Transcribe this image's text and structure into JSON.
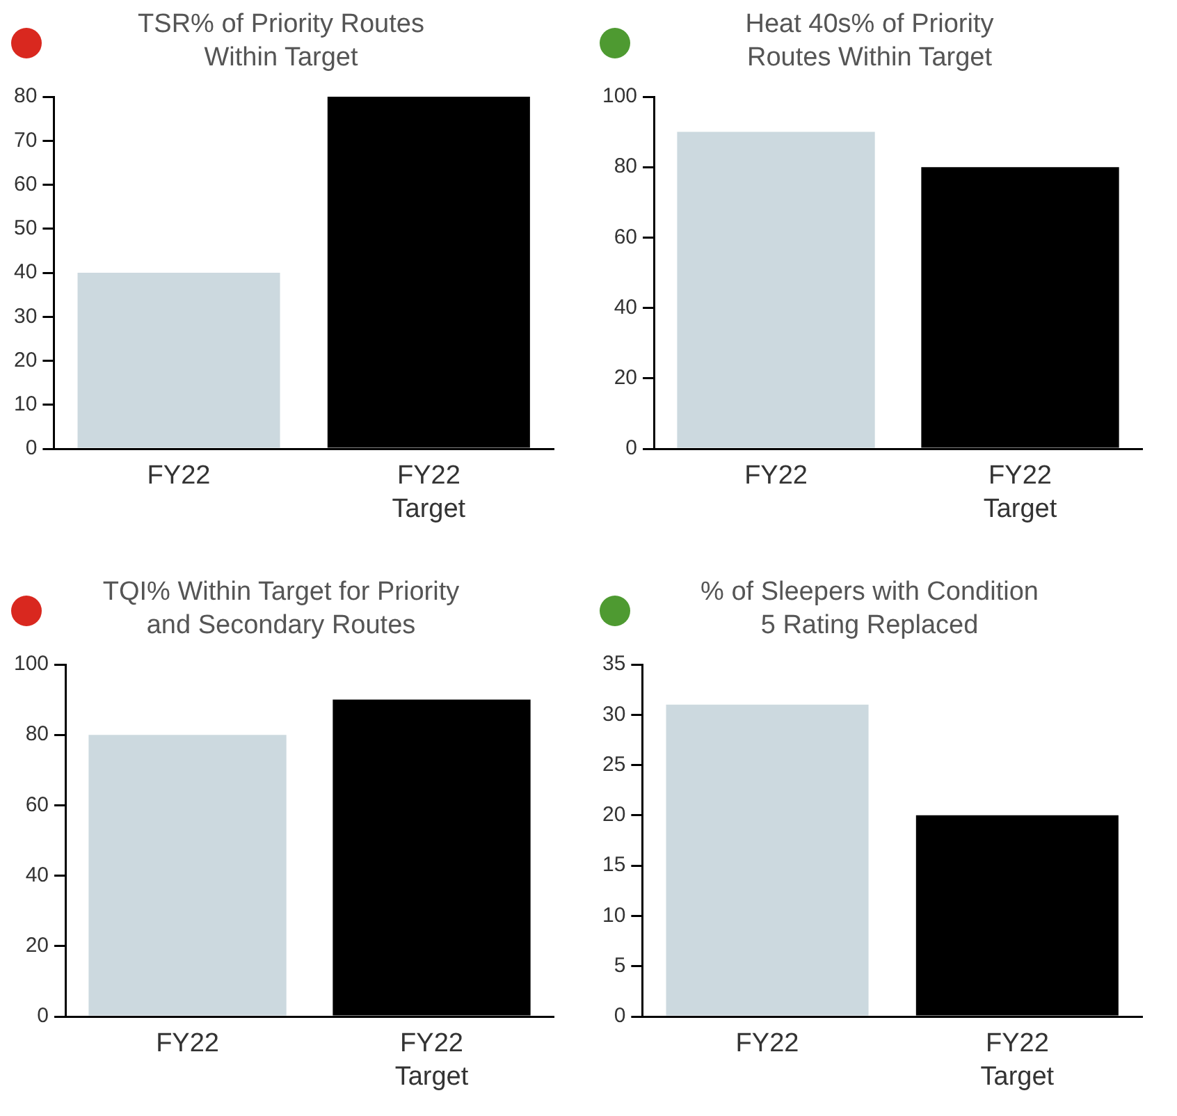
{
  "chart_data": [
    {
      "type": "bar",
      "title": "TSR% of Priority Routes\nWithin Target",
      "categories": [
        "FY22",
        "FY22\nTarget"
      ],
      "values": [
        40,
        80
      ],
      "colors": [
        "#ccd9df",
        "#000000"
      ],
      "ylim": [
        0,
        80
      ],
      "yticks": [
        0,
        10,
        20,
        30,
        40,
        50,
        60,
        70,
        80
      ],
      "grid": false,
      "legend": false
    },
    {
      "type": "bar",
      "title": "Heat 40s% of Priority\nRoutes Within Target",
      "categories": [
        "FY22",
        "FY22\nTarget"
      ],
      "values": [
        90,
        80
      ],
      "colors": [
        "#ccd9df",
        "#000000"
      ],
      "ylim": [
        0,
        100
      ],
      "yticks": [
        0,
        20,
        40,
        60,
        80,
        100
      ],
      "grid": false,
      "legend": false
    },
    {
      "type": "bar",
      "title": "TQI% Within Target for Priority\nand Secondary Routes",
      "categories": [
        "FY22",
        "FY22\nTarget"
      ],
      "values": [
        80,
        90
      ],
      "colors": [
        "#ccd9df",
        "#000000"
      ],
      "ylim": [
        0,
        100
      ],
      "yticks": [
        0,
        20,
        40,
        60,
        80,
        100
      ],
      "grid": false,
      "legend": false
    },
    {
      "type": "bar",
      "title": "% of Sleepers with Condition\n5 Rating Replaced",
      "categories": [
        "FY22",
        "FY22\nTarget"
      ],
      "values": [
        31,
        20
      ],
      "colors": [
        "#ccd9df",
        "#000000"
      ],
      "ylim": [
        0,
        35
      ],
      "yticks": [
        0,
        5,
        10,
        15,
        20,
        25,
        30,
        35
      ],
      "grid": false,
      "legend": false
    }
  ]
}
